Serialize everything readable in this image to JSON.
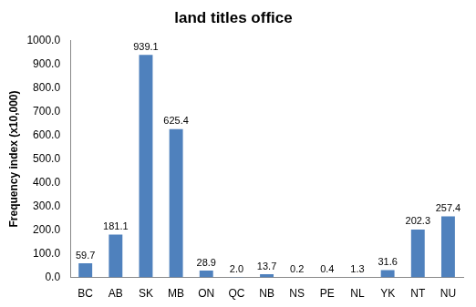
{
  "chart_data": {
    "type": "bar",
    "title": "land titles office",
    "y_label": "Frequency index (x10,000)",
    "categories": [
      "BC",
      "AB",
      "SK",
      "MB",
      "ON",
      "QC",
      "NB",
      "NS",
      "PE",
      "NL",
      "YK",
      "NT",
      "NU"
    ],
    "values": [
      59.7,
      181.1,
      939.1,
      625.4,
      28.9,
      2.0,
      13.7,
      0.2,
      0.4,
      1.3,
      31.6,
      202.3,
      257.4
    ],
    "value_labels": [
      "59.7",
      "181.1",
      "939.1",
      "625.4",
      "28.9",
      "2.0",
      "13.7",
      "0.2",
      "0.4",
      "1.3",
      "31.6",
      "202.3",
      "257.4"
    ],
    "color": "#4f81bd",
    "ylim": [
      0,
      1000
    ],
    "yticks": [
      {
        "value": 0,
        "label": "0.0"
      },
      {
        "value": 100,
        "label": "100.0"
      },
      {
        "value": 200,
        "label": "200.0"
      },
      {
        "value": 300,
        "label": "300.0"
      },
      {
        "value": 400,
        "label": "400.0"
      },
      {
        "value": 500,
        "label": "500.0"
      },
      {
        "value": 600,
        "label": "600.0"
      },
      {
        "value": 700,
        "label": "700.0"
      },
      {
        "value": 800,
        "label": "800.0"
      },
      {
        "value": 900,
        "label": "900.0"
      },
      {
        "value": 1000,
        "label": "1000.0"
      }
    ],
    "grid": false,
    "data_labels": true
  }
}
